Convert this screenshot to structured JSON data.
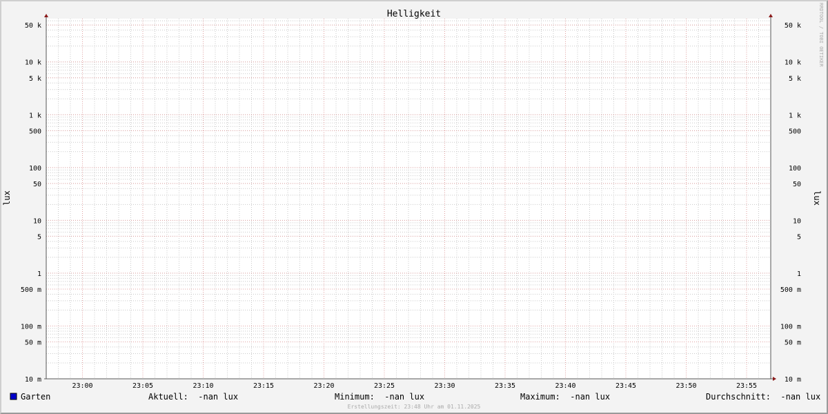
{
  "chart_data": {
    "type": "line",
    "title": "Helligkeit",
    "ylabel": "lux",
    "ylabel_right": "lux",
    "y_scale": "log",
    "ylim": [
      0.01,
      66000
    ],
    "y_ticks": [
      {
        "value": 50000,
        "label": "50 k"
      },
      {
        "value": 10000,
        "label": "10 k"
      },
      {
        "value": 5000,
        "label": "5 k"
      },
      {
        "value": 1000,
        "label": "1 k"
      },
      {
        "value": 500,
        "label": "500"
      },
      {
        "value": 100,
        "label": "100"
      },
      {
        "value": 50,
        "label": "50"
      },
      {
        "value": 10,
        "label": "10"
      },
      {
        "value": 5,
        "label": "5"
      },
      {
        "value": 1,
        "label": "1"
      },
      {
        "value": 0.5,
        "label": "500 m"
      },
      {
        "value": 0.1,
        "label": "100 m"
      },
      {
        "value": 0.05,
        "label": "50 m"
      },
      {
        "value": 0.01,
        "label": "10 m"
      }
    ],
    "x_ticks": [
      "23:00",
      "23:05",
      "23:10",
      "23:15",
      "23:20",
      "23:25",
      "23:30",
      "23:35",
      "23:40",
      "23:45",
      "23:50",
      "23:55"
    ],
    "xlim": [
      "22:57",
      "23:57"
    ],
    "grid": true,
    "series": [
      {
        "name": "Garten",
        "color": "#0000cc",
        "values": []
      }
    ],
    "legend": {
      "series_label": "Garten",
      "aktuell": "Aktuell:  -nan lux",
      "minimum": "Minimum:  -nan lux",
      "maximum": "Maximum:  -nan lux",
      "durchschnitt": "Durchschnitt:  -nan lux"
    },
    "footer": "Erstellungszeit: 23:48 Uhr am 01.11.2025",
    "watermark": "RRDTOOL / TOBI OETIKER",
    "colors": {
      "background": "#f3f3f3",
      "plot": "#ffffff",
      "major_grid": "#e0a0a0",
      "minor_grid": "#c8c8c8",
      "axis_arrow": "#8b1a1a"
    }
  }
}
